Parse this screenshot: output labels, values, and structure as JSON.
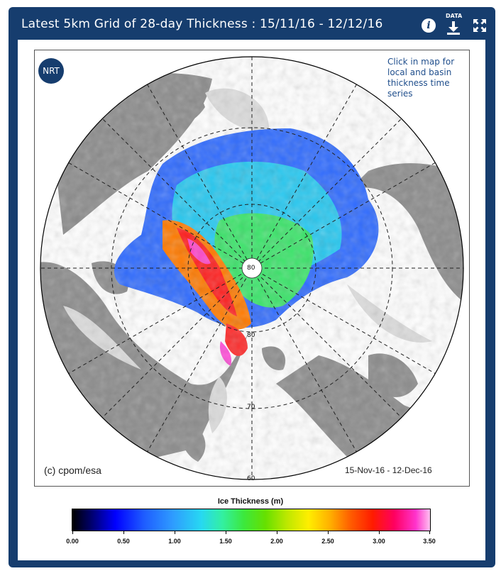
{
  "header": {
    "title": "Latest 5km Grid of 28-day Thickness : 15/11/16 - 12/12/16",
    "data_label": "DATA",
    "icons": [
      "info-icon",
      "download-icon",
      "expand-icon"
    ]
  },
  "map": {
    "badge": "NRT",
    "hint": "Click in map for local and basin thickness time series",
    "copyright": "(c) cpom/esa",
    "date_range": "15-Nov-16 - 12-Dec-16",
    "lat_labels": [
      "80",
      "70",
      "60"
    ],
    "colors": {
      "land": "#8c8c8c",
      "sea": "#ffffff",
      "open_water_edge": "#d9d9d9",
      "frame": "#163d6e"
    }
  },
  "colorbar": {
    "title": "Ice Thickness (m)",
    "ticks": [
      "0.00",
      "0.50",
      "1.00",
      "1.50",
      "2.00",
      "2.50",
      "3.00",
      "3.50"
    ],
    "min": 0.0,
    "max": 3.5
  }
}
